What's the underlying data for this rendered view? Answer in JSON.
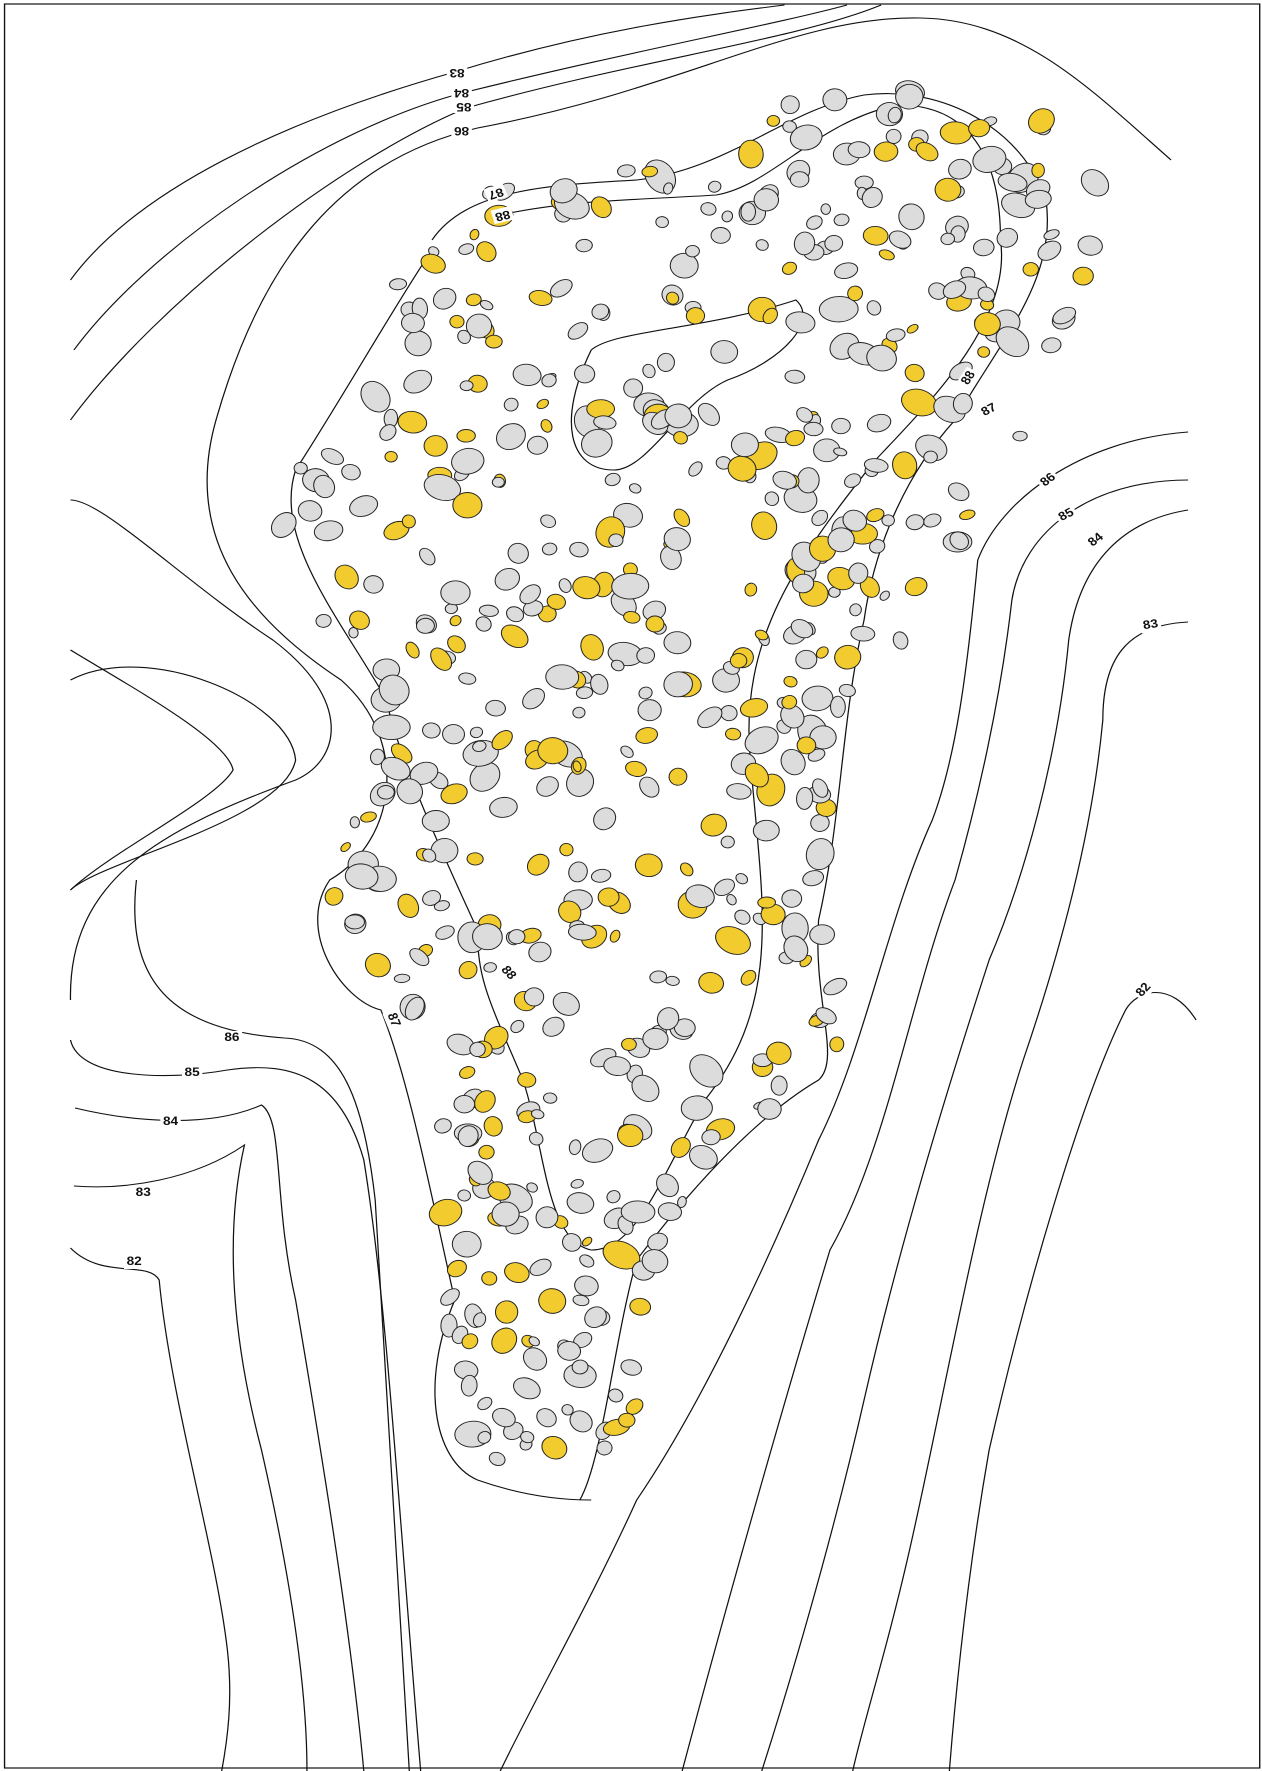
{
  "map": {
    "contour_labels": [
      "83",
      "84",
      "85",
      "86",
      "87",
      "88",
      "88",
      "87",
      "86",
      "85",
      "84",
      "83",
      "82",
      "88",
      "87",
      "86",
      "85",
      "84",
      "83",
      "82"
    ]
  }
}
